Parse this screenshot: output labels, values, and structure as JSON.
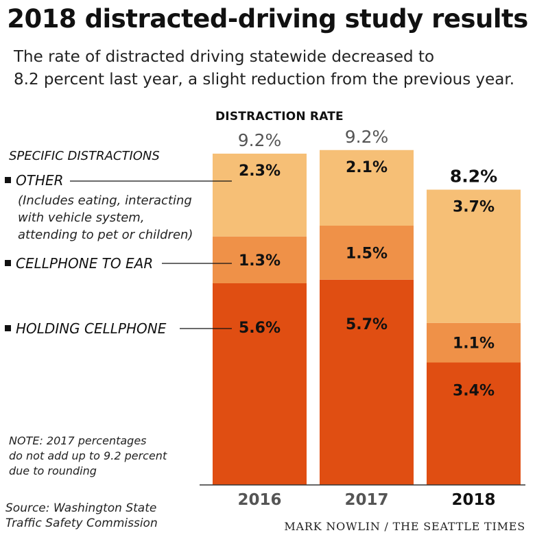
{
  "title": "2018 distracted-driving study results",
  "subtitle": [
    "The rate of distracted driving statewide decreased to",
    "8.2 percent last year, a slight reduction from the previous year."
  ],
  "legend": {
    "heading": "SPECIFIC DISTRACTIONS",
    "other_label": "OTHER",
    "other_note": [
      "(Includes eating, interacting",
      "with vehicle system,",
      "attending to pet or children)"
    ],
    "ear_label": "CELLPHONE TO EAR",
    "holding_label": "HOLDING CELLPHONE"
  },
  "note": [
    "NOTE: 2017 percentages",
    "do not add up to 9.2 percent",
    "due to rounding"
  ],
  "source": [
    "Source: Washington State",
    "Traffic Safety Commission"
  ],
  "credit": "MARK NOWLIN / THE SEATTLE TIMES",
  "colors": {
    "holding": "#e04e12",
    "ear": "#ef9148",
    "other": "#f6bf76",
    "text": "#111111",
    "total_muted": "#555555"
  },
  "chart_data": {
    "type": "bar",
    "stacked": true,
    "header": "DISTRACTION RATE",
    "categories": [
      "2016",
      "2017",
      "2018"
    ],
    "series": [
      {
        "name": "HOLDING CELLPHONE",
        "values": [
          5.6,
          5.7,
          3.4
        ],
        "labels": [
          "5.6%",
          "5.7%",
          "3.4%"
        ]
      },
      {
        "name": "CELLPHONE TO EAR",
        "values": [
          1.3,
          1.5,
          1.1
        ],
        "labels": [
          "1.3%",
          "1.5%",
          "1.1%"
        ]
      },
      {
        "name": "OTHER",
        "values": [
          2.3,
          2.1,
          3.7
        ],
        "labels": [
          "2.3%",
          "2.1%",
          "3.7%"
        ]
      }
    ],
    "totals": [
      9.2,
      9.2,
      8.2
    ],
    "total_labels": [
      "9.2%",
      "9.2%",
      "8.2%"
    ],
    "highlight_category": "2018",
    "ylim": [
      0,
      9.5
    ]
  }
}
